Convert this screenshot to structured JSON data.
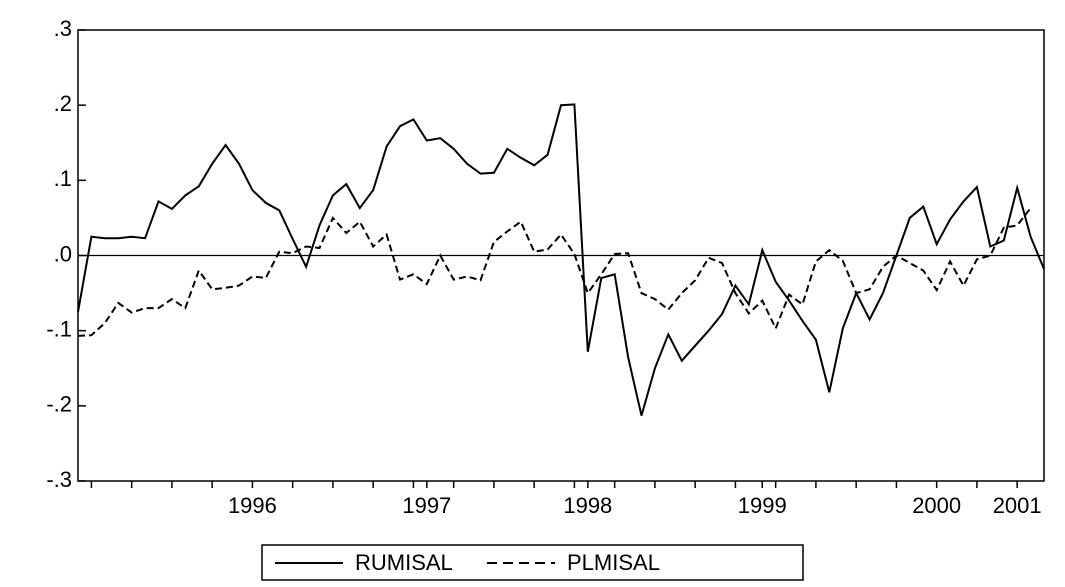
{
  "chart_data": {
    "type": "line",
    "categories": [
      null,
      null,
      null,
      null,
      null,
      null,
      null,
      null,
      null,
      null,
      null,
      null,
      null,
      "1996",
      null,
      null,
      null,
      null,
      null,
      null,
      null,
      null,
      null,
      null,
      null,
      null,
      "1997",
      null,
      null,
      null,
      null,
      null,
      null,
      null,
      null,
      null,
      null,
      null,
      "1998",
      null,
      null,
      null,
      null,
      null,
      null,
      null,
      null,
      null,
      null,
      null,
      null,
      "1999",
      null,
      null,
      null,
      null,
      null,
      null,
      null,
      null,
      null,
      null,
      null,
      null,
      "2000",
      null,
      null,
      null,
      null,
      null,
      "2001",
      null,
      null
    ],
    "series": [
      {
        "name": "RUMISAL",
        "color": "#000000",
        "dash": "solid",
        "values": [
          -0.075,
          0.025,
          0.023,
          0.023,
          0.025,
          0.023,
          0.072,
          0.062,
          0.08,
          0.092,
          0.122,
          0.147,
          0.122,
          0.087,
          0.07,
          0.06,
          0.022,
          -0.015,
          0.04,
          0.08,
          0.095,
          0.063,
          0.087,
          0.145,
          0.172,
          0.181,
          0.153,
          0.156,
          0.142,
          0.122,
          0.109,
          0.11,
          0.142,
          0.13,
          0.12,
          0.134,
          0.2,
          0.201,
          -0.128,
          -0.03,
          -0.025,
          -0.135,
          -0.213,
          -0.15,
          -0.105,
          -0.14,
          -0.12,
          -0.1,
          -0.078,
          -0.04,
          -0.065,
          0.007,
          -0.035,
          -0.06,
          -0.087,
          -0.112,
          -0.182,
          -0.097,
          -0.05,
          -0.085,
          -0.05,
          0,
          0.05,
          0.065,
          0.015,
          0.048,
          0.072,
          0.091,
          0.012,
          0.02,
          0.09,
          0.025,
          -0.018
        ]
      },
      {
        "name": "PLMISAL",
        "color": "#000000",
        "dash": "dashed",
        "values": [
          -0.107,
          -0.106,
          -0.09,
          -0.063,
          -0.076,
          -0.07,
          -0.07,
          -0.058,
          -0.07,
          -0.02,
          -0.045,
          -0.043,
          -0.04,
          -0.028,
          -0.03,
          0.005,
          0.003,
          0.012,
          0.01,
          0.05,
          0.03,
          0.045,
          0.012,
          0.028,
          -0.032,
          -0.025,
          -0.038,
          0,
          -0.032,
          -0.028,
          -0.033,
          0.018,
          0.032,
          0.045,
          0.005,
          0.008,
          0.028,
          0.002,
          -0.05,
          -0.025,
          0.002,
          0.003,
          -0.05,
          -0.058,
          -0.072,
          -0.05,
          -0.033,
          -0.003,
          -0.01,
          -0.05,
          -0.077,
          -0.06,
          -0.097,
          -0.052,
          -0.065,
          -0.008,
          0.007,
          -0.007,
          -0.05,
          -0.045,
          -0.015,
          0,
          -0.01,
          -0.02,
          -0.046,
          -0.008,
          -0.04,
          -0.005,
          0,
          0.037,
          0.04,
          0.063,
          null
        ]
      }
    ],
    "ylim": [
      -0.3,
      0.3
    ],
    "yticks": [
      {
        "value": -0.3,
        "label": "-.3"
      },
      {
        "value": -0.2,
        "label": "-.2"
      },
      {
        "value": -0.1,
        "label": "-.1"
      },
      {
        "value": 0,
        "label": ".0"
      },
      {
        "value": 0.1,
        "label": ".1"
      },
      {
        "value": 0.2,
        "label": ".2"
      },
      {
        "value": 0.3,
        "label": ".3"
      }
    ],
    "zero_line": true,
    "legend": "bottom"
  }
}
